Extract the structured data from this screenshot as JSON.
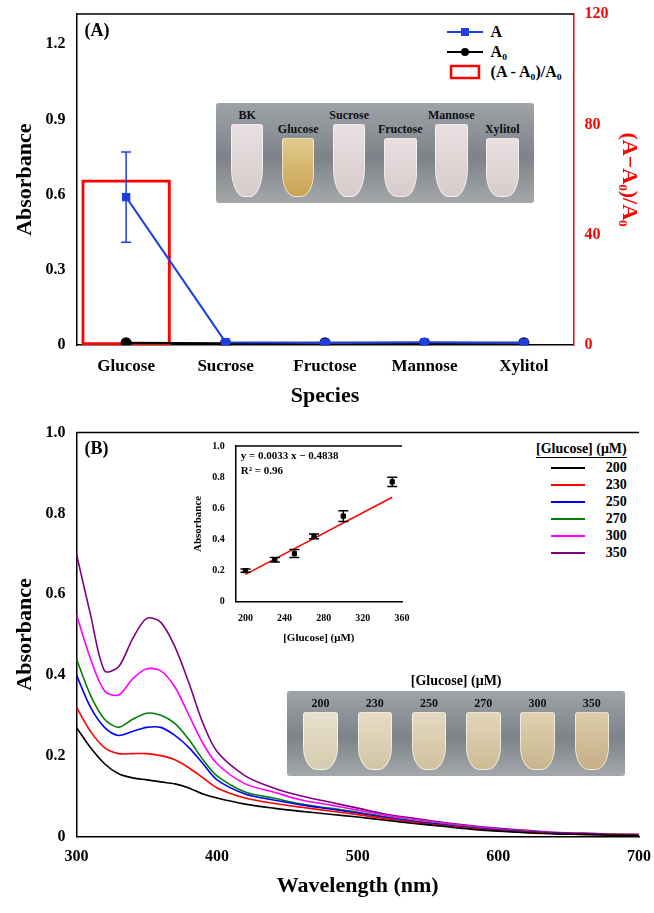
{
  "chart_data": [
    {
      "type": "bar",
      "panel": "(A)",
      "x_label": "Species",
      "y_label": "Absorbance",
      "y2_label": "(A−A₀)/A₀",
      "categories": [
        "Glucose",
        "Sucrose",
        "Fructose",
        "Mannose",
        "Xylitol"
      ],
      "series": [
        {
          "name": "A",
          "type": "line",
          "color": "#1f3fe0",
          "marker": "square",
          "line_style": "solid",
          "values": [
            0.59,
            0.012,
            0.01,
            0.012,
            0.01
          ],
          "errors": [
            0.18,
            0.004,
            0.004,
            0.004,
            0.004
          ]
        },
        {
          "name": "A₀",
          "type": "line",
          "color": "#000000",
          "marker": "circle",
          "line_style": "solid",
          "values": [
            0.01,
            0.008,
            0.01,
            0.009,
            0.01
          ]
        },
        {
          "name": "(A - A₀)/A₀",
          "type": "bar",
          "axis": "y2",
          "color": "#ff0000",
          "values": [
            60,
            0,
            0,
            0,
            0
          ]
        }
      ],
      "ylim": [
        0,
        1.32
      ],
      "yticks": [
        0,
        0.3,
        0.6,
        0.9,
        1.2
      ],
      "y2lim": [
        0,
        120
      ],
      "y2ticks": [
        0,
        40,
        80,
        120
      ],
      "grid": false,
      "legend": "top right",
      "photo": {
        "labels": [
          "BK",
          "Glucose",
          "Sucrose",
          "Fructose",
          "Mannose",
          "Xylitol"
        ]
      }
    },
    {
      "type": "line",
      "panel": "(B)",
      "x_label": "Wavelength (nm)",
      "y_label": "Absorbance",
      "x": [
        300,
        310,
        320,
        330,
        340,
        350,
        360,
        370,
        380,
        390,
        400,
        420,
        440,
        460,
        480,
        500,
        520,
        540,
        560,
        580,
        600,
        620,
        640,
        660,
        680,
        700
      ],
      "series": [
        {
          "name": "200",
          "color": "#000000",
          "values": [
            0.27,
            0.22,
            0.18,
            0.155,
            0.145,
            0.14,
            0.135,
            0.13,
            0.12,
            0.105,
            0.095,
            0.08,
            0.07,
            0.062,
            0.055,
            0.048,
            0.04,
            0.032,
            0.025,
            0.018,
            0.013,
            0.009,
            0.006,
            0.005,
            0.003,
            0.002
          ]
        },
        {
          "name": "230",
          "color": "#ff0000",
          "values": [
            0.32,
            0.26,
            0.22,
            0.205,
            0.205,
            0.205,
            0.2,
            0.19,
            0.17,
            0.145,
            0.12,
            0.095,
            0.082,
            0.072,
            0.063,
            0.054,
            0.044,
            0.035,
            0.027,
            0.02,
            0.014,
            0.01,
            0.007,
            0.005,
            0.004,
            0.003
          ]
        },
        {
          "name": "250",
          "color": "#0000ff",
          "values": [
            0.4,
            0.32,
            0.27,
            0.25,
            0.26,
            0.27,
            0.27,
            0.25,
            0.22,
            0.18,
            0.14,
            0.105,
            0.09,
            0.078,
            0.068,
            0.058,
            0.047,
            0.037,
            0.029,
            0.021,
            0.015,
            0.011,
            0.008,
            0.006,
            0.004,
            0.003
          ]
        },
        {
          "name": "270",
          "color": "#008000",
          "values": [
            0.44,
            0.35,
            0.29,
            0.27,
            0.29,
            0.305,
            0.3,
            0.28,
            0.24,
            0.19,
            0.15,
            0.11,
            0.095,
            0.08,
            0.07,
            0.06,
            0.048,
            0.038,
            0.03,
            0.022,
            0.016,
            0.012,
            0.008,
            0.006,
            0.005,
            0.004
          ]
        },
        {
          "name": "300",
          "color": "#ff00ff",
          "values": [
            0.55,
            0.44,
            0.36,
            0.35,
            0.39,
            0.415,
            0.41,
            0.37,
            0.3,
            0.23,
            0.18,
            0.13,
            0.11,
            0.09,
            0.078,
            0.065,
            0.052,
            0.042,
            0.033,
            0.025,
            0.018,
            0.013,
            0.009,
            0.007,
            0.005,
            0.004
          ]
        },
        {
          "name": "350",
          "color": "#800080",
          "values": [
            0.7,
            0.55,
            0.41,
            0.42,
            0.49,
            0.54,
            0.53,
            0.47,
            0.38,
            0.28,
            0.21,
            0.15,
            0.12,
            0.1,
            0.085,
            0.07,
            0.055,
            0.045,
            0.035,
            0.027,
            0.02,
            0.015,
            0.01,
            0.008,
            0.006,
            0.005
          ]
        }
      ],
      "xlim": [
        300,
        700
      ],
      "xticks": [
        300,
        400,
        500,
        600,
        700
      ],
      "ylim": [
        0,
        1
      ],
      "yticks": [
        0,
        0.2,
        0.4,
        0.6,
        0.8,
        {
          "value": 1,
          "label": "1.0"
        }
      ],
      "grid": false,
      "legend": "top right",
      "legend_title": "[Glucose] (μM)",
      "photo": {
        "title": "[Glucose] (μM)",
        "labels": [
          "200",
          "230",
          "250",
          "270",
          "300",
          "350"
        ]
      }
    },
    {
      "type": "scatter",
      "x_label": "[Glucose] (μM)",
      "y_label": "Absorbance",
      "x": [
        200,
        230,
        250,
        270,
        300,
        350
      ],
      "values": [
        0.2,
        0.27,
        0.31,
        0.42,
        0.55,
        0.77
      ],
      "errors": [
        0.01,
        0.015,
        0.025,
        0.015,
        0.035,
        0.03
      ],
      "color": "#000000",
      "marker": "square",
      "fit": {
        "slope": 0.0033,
        "intercept": -0.4838,
        "color": "#ff0000",
        "equation": "y = 0.0033 x − 0.4838",
        "r2": "R² = 0.96"
      },
      "xlim": [
        190,
        360
      ],
      "xticks": [
        200,
        240,
        280,
        320,
        360
      ],
      "ylim": [
        0,
        1
      ],
      "yticks": [
        0,
        0.2,
        0.4,
        0.6,
        0.8,
        {
          "value": 1,
          "label": "1.0"
        }
      ],
      "grid": false
    }
  ]
}
